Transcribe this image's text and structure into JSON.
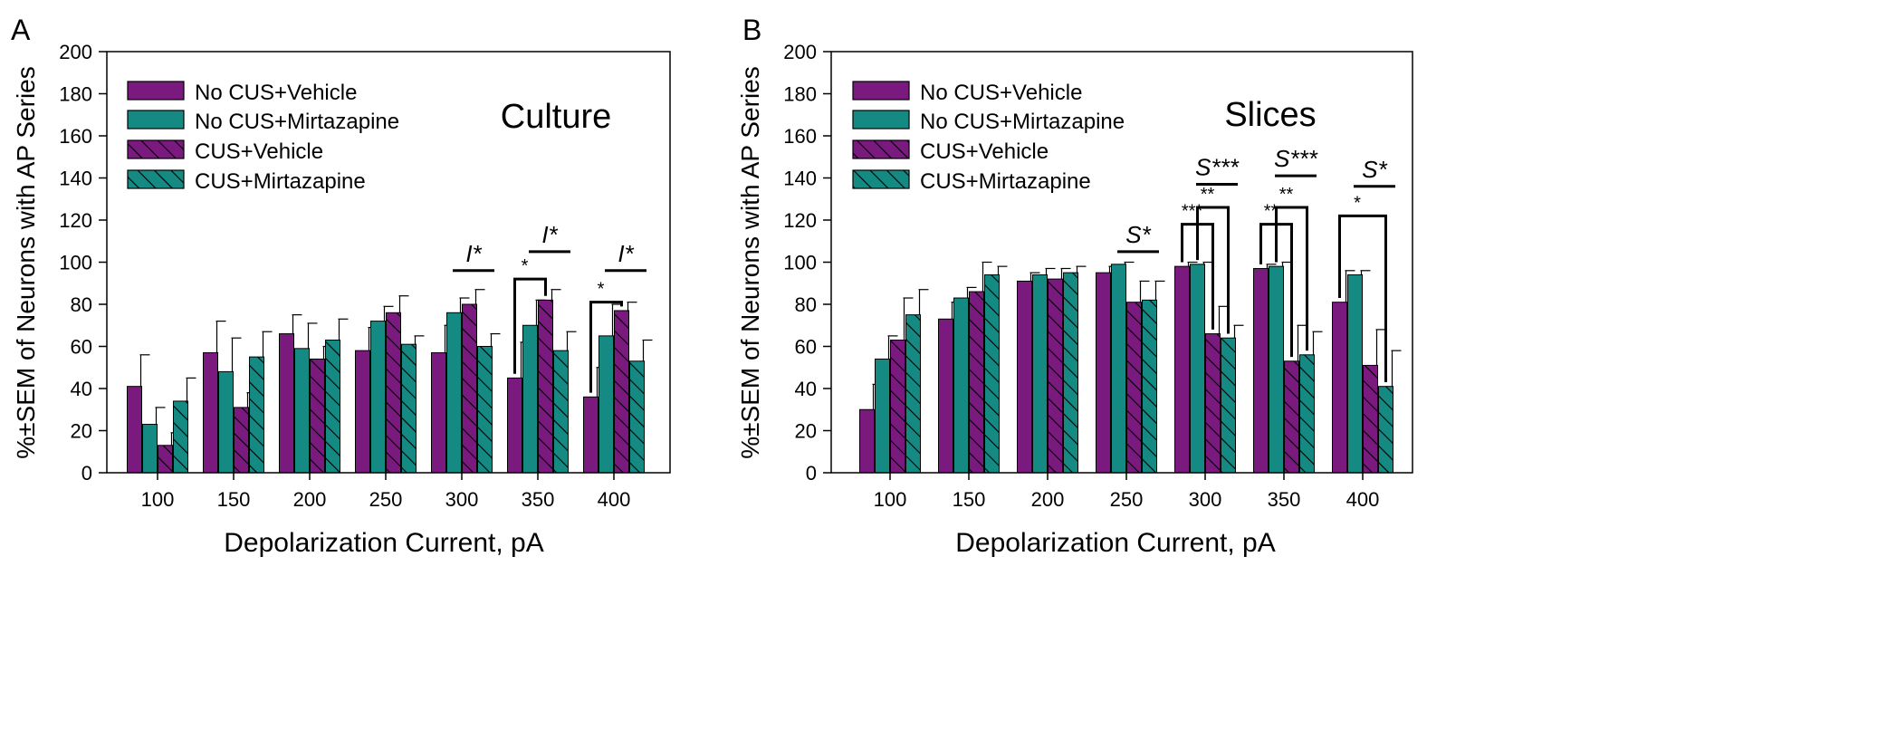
{
  "figure": {
    "legend_entries": [
      "No CUS+Vehicle",
      "No CUS+Mirtazapine",
      "CUS+Vehicle",
      "CUS+Mirtazapine"
    ],
    "colors": {
      "purple": "#7a1a7e",
      "teal": "#148a82",
      "axis": "#000000"
    }
  },
  "chart_data": [
    {
      "panel_label": "A",
      "type": "bar",
      "title": "Culture",
      "xlabel": "Depolarization Current, pA",
      "ylabel": "%±SEM of Neurons with AP Series",
      "ylim": [
        0,
        200
      ],
      "yticks": [
        0,
        20,
        40,
        60,
        80,
        100,
        120,
        140,
        160,
        180,
        200
      ],
      "categories": [
        "100",
        "150",
        "200",
        "250",
        "300",
        "350",
        "400"
      ],
      "legend_position": "top-left",
      "series": [
        {
          "name": "No CUS+Vehicle",
          "color": "purple",
          "hatched": false,
          "values": [
            41,
            57,
            66,
            58,
            57,
            45,
            36
          ],
          "errors": [
            15,
            15,
            9,
            11,
            13,
            17,
            14
          ]
        },
        {
          "name": "No CUS+Mirtazapine",
          "color": "teal",
          "hatched": false,
          "values": [
            23,
            48,
            59,
            72,
            76,
            70,
            65
          ],
          "errors": [
            8,
            16,
            12,
            7,
            7,
            12,
            15
          ]
        },
        {
          "name": "CUS+Vehicle",
          "color": "purple",
          "hatched": true,
          "values": [
            13,
            31,
            54,
            76,
            80,
            82,
            77
          ],
          "errors": [
            6,
            7,
            6,
            8,
            7,
            5,
            4
          ]
        },
        {
          "name": "CUS+Mirtazapine",
          "color": "teal",
          "hatched": true,
          "values": [
            34,
            55,
            63,
            61,
            60,
            58,
            53
          ],
          "errors": [
            11,
            12,
            10,
            4,
            6,
            9,
            10
          ]
        }
      ],
      "annotations": [
        {
          "category": "300",
          "kind": "line",
          "label": "I*",
          "y": 96
        },
        {
          "category": "350",
          "kind": "line",
          "label": "I*",
          "y": 105
        },
        {
          "category": "400",
          "kind": "line",
          "label": "I*",
          "y": 96
        },
        {
          "category": "350",
          "kind": "bracket",
          "label": "*",
          "from": 0,
          "to": 2,
          "y": 92
        },
        {
          "category": "400",
          "kind": "bracket",
          "label": "*",
          "from": 0,
          "to": 2,
          "y": 81
        }
      ]
    },
    {
      "panel_label": "B",
      "type": "bar",
      "title": "Slices",
      "xlabel": "Depolarization Current, pA",
      "ylabel": "%±SEM of Neurons with AP Series",
      "ylim": [
        0,
        200
      ],
      "yticks": [
        0,
        20,
        40,
        60,
        80,
        100,
        120,
        140,
        160,
        180,
        200
      ],
      "categories": [
        "100",
        "150",
        "200",
        "250",
        "300",
        "350",
        "400"
      ],
      "legend_position": "top-left",
      "series": [
        {
          "name": "No CUS+Vehicle",
          "color": "purple",
          "hatched": false,
          "values": [
            30,
            73,
            91,
            95,
            98,
            97,
            81
          ],
          "errors": [
            12,
            8,
            4,
            3,
            2,
            2,
            15
          ]
        },
        {
          "name": "No CUS+Mirtazapine",
          "color": "teal",
          "hatched": false,
          "values": [
            54,
            83,
            94,
            99,
            99,
            98,
            94
          ],
          "errors": [
            11,
            5,
            3,
            1,
            1,
            2,
            2
          ]
        },
        {
          "name": "CUS+Vehicle",
          "color": "purple",
          "hatched": true,
          "values": [
            63,
            86,
            92,
            81,
            66,
            53,
            51
          ],
          "errors": [
            20,
            14,
            5,
            10,
            13,
            17,
            17
          ]
        },
        {
          "name": "CUS+Mirtazapine",
          "color": "teal",
          "hatched": true,
          "values": [
            75,
            94,
            95,
            82,
            64,
            56,
            41
          ],
          "errors": [
            12,
            4,
            3,
            9,
            6,
            11,
            17
          ]
        }
      ],
      "annotations": [
        {
          "category": "250",
          "kind": "line",
          "label": "S*",
          "y": 105
        },
        {
          "category": "300",
          "kind": "line",
          "label": "S***",
          "y": 137
        },
        {
          "category": "350",
          "kind": "line",
          "label": "S***",
          "y": 141
        },
        {
          "category": "400",
          "kind": "line",
          "label": "S*",
          "y": 136
        },
        {
          "category": "300",
          "kind": "bracket",
          "label": "***",
          "from": 0,
          "to": 2,
          "y": 118
        },
        {
          "category": "300",
          "kind": "bracket",
          "label": "**",
          "from": 1,
          "to": 3,
          "y": 126
        },
        {
          "category": "350",
          "kind": "bracket",
          "label": "**",
          "from": 0,
          "to": 2,
          "y": 118
        },
        {
          "category": "350",
          "kind": "bracket",
          "label": "**",
          "from": 1,
          "to": 3,
          "y": 126
        },
        {
          "category": "400",
          "kind": "bracket",
          "label": "*",
          "from": 0,
          "to": 3,
          "y": 122
        }
      ]
    }
  ]
}
